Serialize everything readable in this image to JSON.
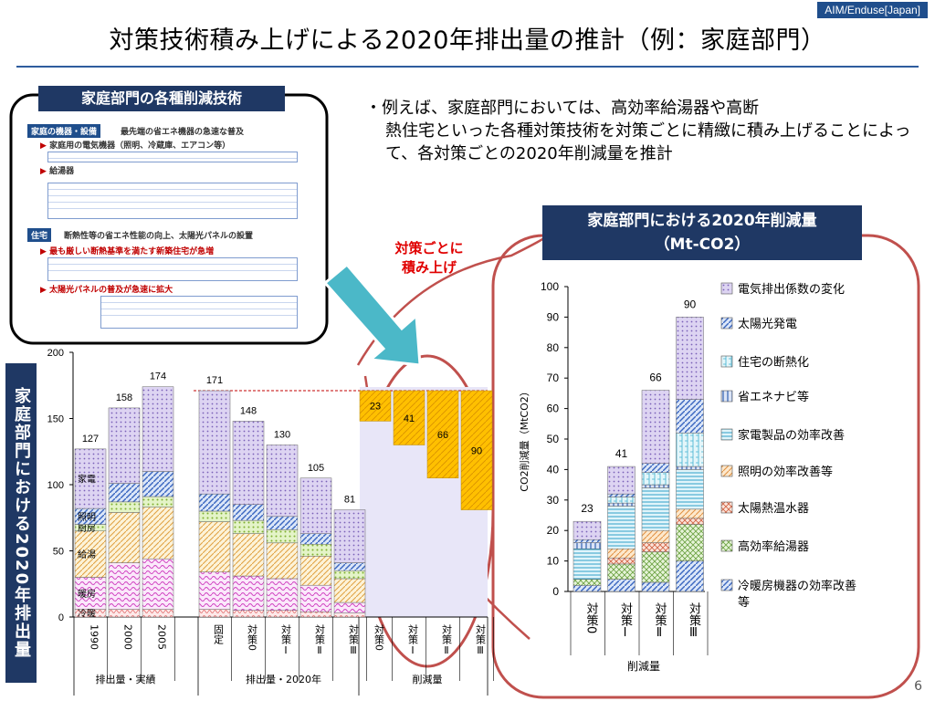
{
  "header": {
    "tag": "AIM/Enduse[Japan]",
    "title": "対策技術積み上げによる2020年排出量の推計（例：家庭部門）"
  },
  "tech_panel": {
    "title": "家庭部門の各種削減技術",
    "sec1": "家庭の機器・設備",
    "sec1_desc": "最先端の省エネ機器の急速な普及",
    "sub1": "家庭用の電気機器（照明、冷蔵庫、エアコン等）",
    "sub2": "給湯器",
    "sec2": "住宅",
    "sec2_desc": "断熱性等の省エネ性能の向上、太陽光パネルの設置",
    "sub3": "最も厳しい断熱基準を満たす新築住宅が急増",
    "sub4": "太陽光パネルの普及が急速に拡大"
  },
  "bullet": {
    "first": "・例えば、家庭部門においては、高効率給湯器や高断",
    "rest": "熱住宅といった各種対策技術を対策ごとに精緻に積み上げることによって、各対策ごとの2020年削減量を推計"
  },
  "note": {
    "line1": "対策ごとに",
    "line2": "積み上げ"
  },
  "left_label": "家庭部門における2020年排出量",
  "right_title": {
    "line1": "家庭部門における2020年削減量",
    "line2": "（Mt-CO2）"
  },
  "page_number": "6",
  "colors": {
    "navy": "#1f3864",
    "red_frame": "#c0504d",
    "arrow": "#4bb8c8",
    "reduction": "#ffc000",
    "band": "#e8e6f8"
  },
  "chart_data": [
    {
      "type": "bar",
      "stacked": true,
      "ylim": [
        0,
        200
      ],
      "yticks": [
        0,
        50,
        100,
        150,
        200
      ],
      "segment_order": [
        "冷暖",
        "暖房",
        "給湯",
        "厨房",
        "照明",
        "家電"
      ],
      "groups": [
        {
          "label": "排出量・実績",
          "bars": [
            {
              "label": "1990",
              "total": 127,
              "segments": [
                6,
                24,
                35,
                5,
                12,
                45
              ],
              "annotate": [
                "冷暖",
                "暖房",
                "給湯",
                "厨房",
                "照明",
                "家電"
              ]
            },
            {
              "label": "2000",
              "total": 158,
              "segments": [
                6,
                35,
                38,
                8,
                14,
                57
              ]
            },
            {
              "label": "2005",
              "total": 174,
              "segments": [
                6,
                38,
                39,
                8,
                19,
                64
              ]
            }
          ]
        },
        {
          "label": "排出量・2020年",
          "bars": [
            {
              "label": "固定",
              "total": 171,
              "segments": [
                6,
                28,
                38,
                8,
                13,
                78
              ]
            },
            {
              "label": "対策0",
              "total": 148,
              "segments": [
                5,
                26,
                32,
                10,
                12,
                63
              ]
            },
            {
              "label": "対策Ⅰ",
              "total": 130,
              "segments": [
                5,
                24,
                27,
                10,
                10,
                54
              ]
            },
            {
              "label": "対策Ⅱ",
              "total": 105,
              "segments": [
                4,
                20,
                22,
                9,
                8,
                42
              ]
            },
            {
              "label": "対策Ⅲ",
              "total": 81,
              "segments": [
                3,
                8,
                18,
                6,
                6,
                40
              ]
            }
          ]
        },
        {
          "label": "削減量",
          "bars": [
            {
              "label": "対策0",
              "reduction": 23
            },
            {
              "label": "対策Ⅰ",
              "reduction": 41
            },
            {
              "label": "対策Ⅱ",
              "reduction": 66
            },
            {
              "label": "対策Ⅲ",
              "reduction": 90
            }
          ]
        }
      ],
      "reference_value": 171
    },
    {
      "type": "bar",
      "stacked": true,
      "ylabel": "CO2削減量（MtCO2）",
      "xlabel": "削減量",
      "ylim": [
        0,
        100
      ],
      "yticks": [
        0,
        10,
        20,
        30,
        40,
        50,
        60,
        70,
        80,
        90,
        100
      ],
      "categories": [
        "対策0",
        "対策Ⅰ",
        "対策Ⅱ",
        "対策Ⅲ"
      ],
      "totals": [
        23,
        41,
        66,
        90
      ],
      "series": [
        {
          "name": "冷暖房機器の効率改善等",
          "values": [
            2,
            4,
            3,
            10
          ]
        },
        {
          "name": "高効率給湯器",
          "values": [
            2,
            5,
            10,
            12
          ]
        },
        {
          "name": "太陽熱温水器",
          "values": [
            0,
            2,
            3,
            2
          ]
        },
        {
          "name": "照明の効率改善等",
          "values": [
            0,
            3,
            4,
            3
          ]
        },
        {
          "name": "家電製品の効率改善",
          "values": [
            10,
            14,
            14,
            13
          ]
        },
        {
          "name": "省エネナビ等",
          "values": [
            2,
            1,
            1,
            1
          ]
        },
        {
          "name": "住宅の断熱化",
          "values": [
            0,
            2,
            4,
            11
          ]
        },
        {
          "name": "太陽光発電",
          "values": [
            1,
            1,
            3,
            11
          ]
        },
        {
          "name": "電気排出係数の変化",
          "values": [
            6,
            9,
            24,
            27
          ]
        }
      ],
      "legend_order": [
        "電気排出係数の変化",
        "太陽光発電",
        "住宅の断熱化",
        "省エネナビ等",
        "家電製品の効率改善",
        "照明の効率改善等",
        "太陽熱温水器",
        "高効率給湯器",
        "冷暖房機器の効率改善等"
      ],
      "legend": "right"
    }
  ]
}
